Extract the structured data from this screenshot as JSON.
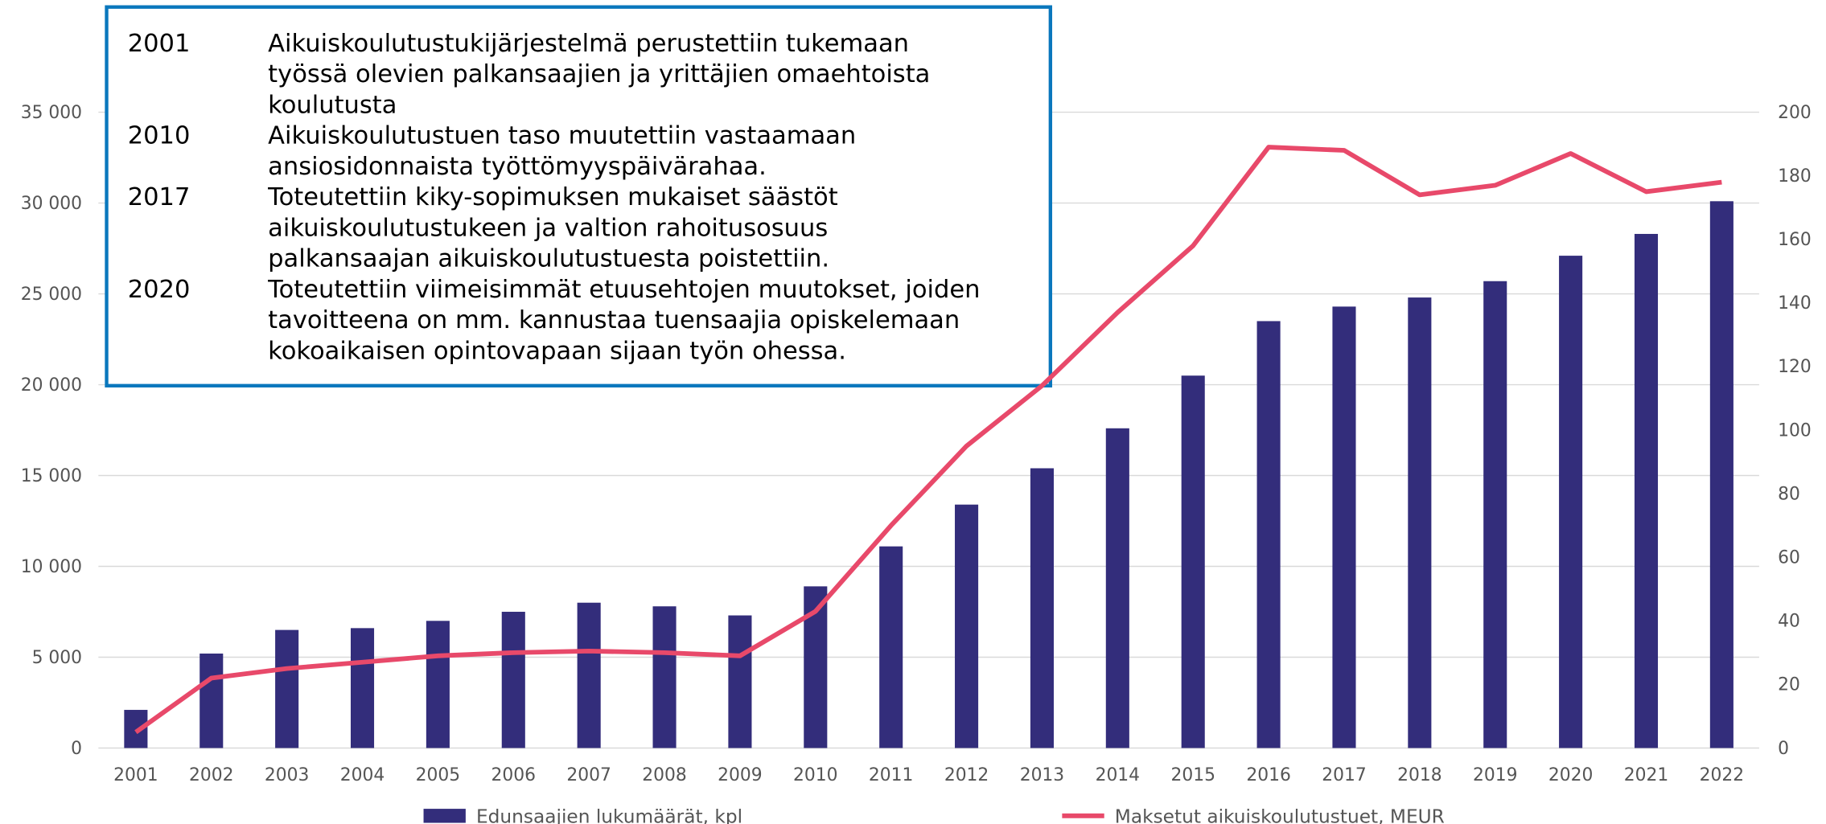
{
  "chart_data": {
    "type": "bar-line",
    "categories": [
      "2001",
      "2002",
      "2003",
      "2004",
      "2005",
      "2006",
      "2007",
      "2008",
      "2009",
      "2010",
      "2011",
      "2012",
      "2013",
      "2014",
      "2015",
      "2016",
      "2017",
      "2018",
      "2019",
      "2020",
      "2021",
      "2022"
    ],
    "series": [
      {
        "name": "Edunsaajien lukumäärät, kpl",
        "type": "bar",
        "color": "#332d7b",
        "values": [
          2100,
          5200,
          6500,
          6600,
          7000,
          7500,
          8000,
          7800,
          7300,
          8900,
          11100,
          13400,
          15400,
          17600,
          20500,
          23500,
          24300,
          24800,
          25700,
          27100,
          28300,
          30100
        ]
      },
      {
        "name": "Maksetut aikuiskoulutustuet, MEUR",
        "type": "line",
        "axis": "y2",
        "color": "#e8496a",
        "values": [
          5,
          22,
          25,
          27,
          29,
          30,
          30.5,
          30,
          29,
          43,
          70,
          95,
          114,
          137,
          158,
          189,
          188,
          174,
          177,
          187,
          175,
          178
        ]
      }
    ],
    "ylim": [
      0,
      35000
    ],
    "yticks": [
      {
        "value": 0,
        "label": "0"
      },
      {
        "value": 5000,
        "label": "5 000"
      },
      {
        "value": 10000,
        "label": "10 000"
      },
      {
        "value": 15000,
        "label": "15 000"
      },
      {
        "value": 20000,
        "label": "20 000"
      },
      {
        "value": 25000,
        "label": "25 000"
      },
      {
        "value": 30000,
        "label": "30 000"
      },
      {
        "value": 35000,
        "label": "35 000"
      }
    ],
    "y2lim": [
      0,
      200
    ],
    "y2ticks": [
      0,
      20,
      40,
      60,
      80,
      100,
      120,
      140,
      160,
      180,
      200
    ],
    "grid": true,
    "legend": "bottom",
    "annotations": [
      {
        "year": "2001",
        "lines": [
          "Aikuiskoulutustukijärjestelmä perustettiin tukemaan",
          "työssä olevien palkansaajien ja yrittäjien omaehtoista",
          "koulutusta"
        ]
      },
      {
        "year": "2010",
        "lines": [
          "Aikuiskoulutustuen taso muutettiin vastaamaan",
          "ansiosidonnaista työttömyyspäivärahaa."
        ]
      },
      {
        "year": "2017",
        "lines": [
          "Toteutettiin kiky-sopimuksen mukaiset säästöt",
          "aikuiskoulutustukeen ja valtion rahoitusosuus",
          "palkansaajan aikuiskoulutustuesta poistettiin."
        ]
      },
      {
        "year": "2020",
        "lines": [
          "Toteutettiin viimeisimmät etuusehtojen muutokset, joiden",
          "tavoitteena on mm. kannustaa tuensaajia opiskelemaan",
          "kokoaikaisen opintovapaan sijaan työn ohessa."
        ]
      }
    ]
  }
}
